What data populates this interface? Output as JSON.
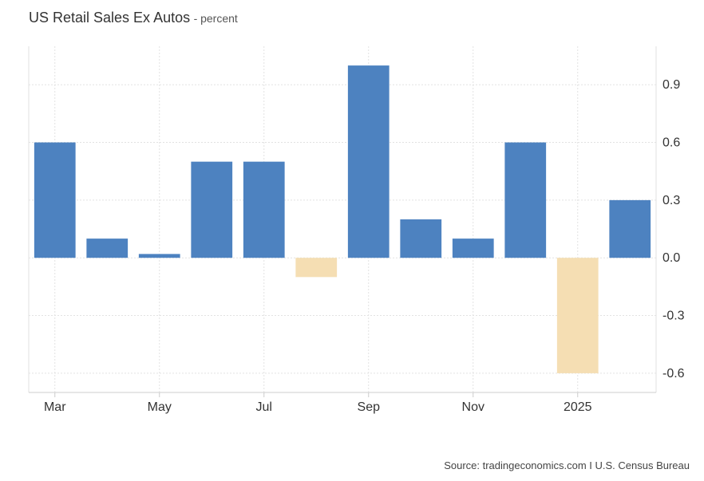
{
  "chart_data": {
    "type": "bar",
    "title": "US Retail Sales Ex Autos",
    "subtitle": "- percent",
    "categories": [
      "2024-03",
      "2024-04",
      "2024-05",
      "2024-06",
      "2024-07",
      "2024-08",
      "2024-09",
      "2024-10",
      "2024-11",
      "2024-12",
      "2025-01",
      "2025-02"
    ],
    "values": [
      0.6,
      0.1,
      0.02,
      0.5,
      0.5,
      -0.1,
      1.0,
      0.2,
      0.1,
      0.6,
      -0.6,
      0.3
    ],
    "x_tick_labels": [
      {
        "category": "2024-03",
        "label": "Mar"
      },
      {
        "category": "2024-05",
        "label": "May"
      },
      {
        "category": "2024-07",
        "label": "Jul"
      },
      {
        "category": "2024-09",
        "label": "Sep"
      },
      {
        "category": "2024-11",
        "label": "Nov"
      },
      {
        "category": "2025-01",
        "label": "2025"
      }
    ],
    "y_ticks": [
      0.9,
      0.6,
      0.3,
      0.0,
      -0.3,
      -0.6
    ],
    "y_tick_labels": [
      "0.9",
      "0.6",
      "0.3",
      "0.0",
      "-0.3",
      "-0.6"
    ],
    "ylim": [
      -0.7,
      1.1
    ],
    "xlabel": "",
    "ylabel": "",
    "y_axis_position": "right",
    "grid": true,
    "legend": "none",
    "colors": {
      "positive": "#4d82c0",
      "negative": "#f5deb3",
      "grid": "#e2e2e2",
      "axis": "#cccccc"
    }
  },
  "source": "Source: tradingeconomics.com I U.S. Census Bureau"
}
